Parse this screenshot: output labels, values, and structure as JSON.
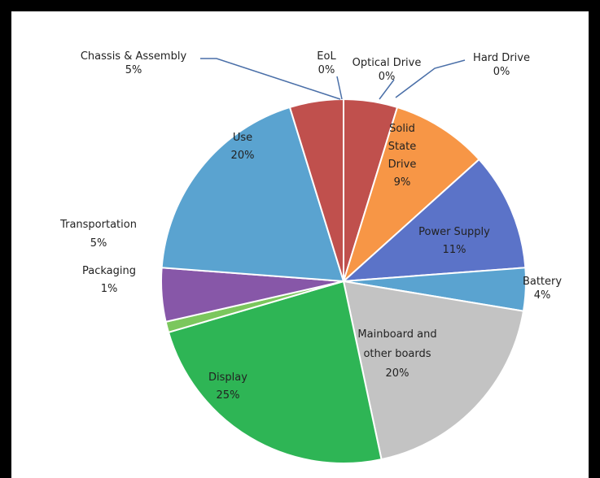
{
  "chart_data": {
    "type": "pie",
    "title": "",
    "slices": [
      {
        "label": "EoL",
        "value": 0,
        "text": "0%",
        "color": "#c0504d"
      },
      {
        "label": "Optical Drive",
        "value": 0,
        "text": "0%",
        "color": "#c0504d"
      },
      {
        "label": "Hard Drive",
        "value": 0,
        "text": "0%",
        "color": "#c0504d"
      },
      {
        "label": "",
        "value": 5,
        "text": "",
        "color": "#c0504d"
      },
      {
        "label": "Solid State Drive",
        "value": 9,
        "text": "9%",
        "color": "#f79646"
      },
      {
        "label": "Power Supply",
        "value": 11,
        "text": "11%",
        "color": "#5b73c8"
      },
      {
        "label": "Battery",
        "value": 4,
        "text": "4%",
        "color": "#5aa3d0"
      },
      {
        "label": "Mainboard and other boards",
        "value": 20,
        "text": "20%",
        "color": "#c3c3c3"
      },
      {
        "label": "Display",
        "value": 25,
        "text": "25%",
        "color": "#2eb555"
      },
      {
        "label": "Packaging",
        "value": 1,
        "text": "1%",
        "color": "#7bc75d"
      },
      {
        "label": "Transportation",
        "value": 5,
        "text": "5%",
        "color": "#8757a8"
      },
      {
        "label": "Use",
        "value": 20,
        "text": "20%",
        "color": "#5aa3d0"
      },
      {
        "label": "Chassis & Assembly",
        "value": 5,
        "text": "5%",
        "color": "#c0504d"
      }
    ]
  },
  "labels": {
    "chassis": {
      "name": "Chassis & Assembly",
      "pct": "5%"
    },
    "eol": {
      "name": "EoL",
      "pct": "0%"
    },
    "optical": {
      "name": "Optical Drive",
      "pct": "0%"
    },
    "hard": {
      "name": "Hard Drive",
      "pct": "0%"
    },
    "ssd": {
      "l1": "Solid",
      "l2": "State",
      "l3": "Drive",
      "pct": "9%"
    },
    "power": {
      "name": "Power Supply",
      "pct": "11%"
    },
    "battery": {
      "name": "Battery",
      "pct": "4%"
    },
    "mainboard": {
      "l1": "Mainboard and",
      "l2": "other boards",
      "pct": "20%"
    },
    "display": {
      "name": "Display",
      "pct": "25%"
    },
    "packaging": {
      "name": "Packaging",
      "pct": "1%"
    },
    "transport": {
      "name": "Transportation",
      "pct": "5%"
    },
    "use": {
      "name": "Use",
      "pct": "20%"
    }
  }
}
